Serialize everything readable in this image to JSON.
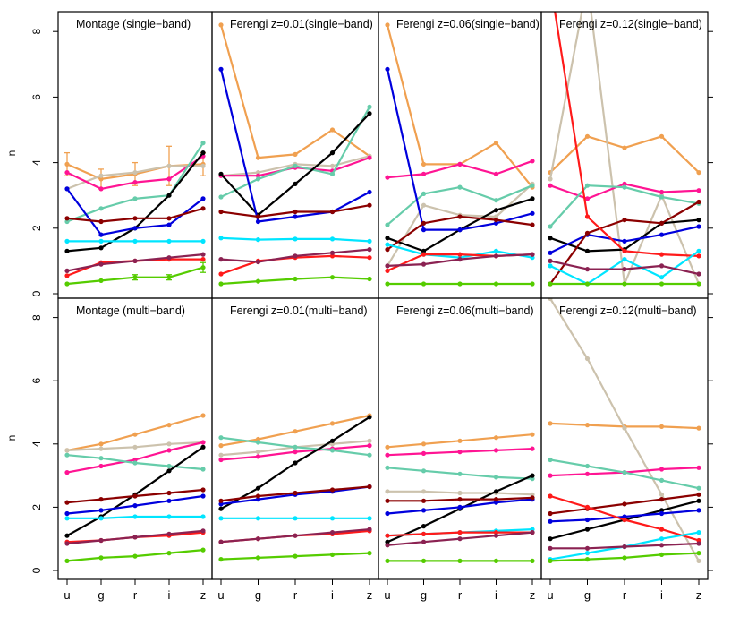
{
  "figure": {
    "ylabel": "n",
    "xticks": [
      "u",
      "g",
      "r",
      "i",
      "z"
    ],
    "yticks": [
      "0",
      "2",
      "4",
      "6",
      "8"
    ]
  },
  "chart_data": [
    {
      "type": "line",
      "title": "Montage (single−band)",
      "ylabel": "n",
      "categories": [
        "u",
        "g",
        "r",
        "i",
        "z"
      ],
      "ylim": [
        -0.2,
        8.7
      ],
      "series": [
        {
          "color": "#f0a050",
          "values": [
            3.95,
            3.5,
            3.65,
            3.9,
            3.95
          ],
          "err": [
            0.35,
            0.3,
            0.35,
            0.6,
            0.35
          ]
        },
        {
          "color": "#ccc2ad",
          "values": [
            3.2,
            3.6,
            3.7,
            3.9,
            3.9
          ]
        },
        {
          "color": "#ff1493",
          "values": [
            3.7,
            3.2,
            3.4,
            3.5,
            4.2
          ]
        },
        {
          "color": "#66ccaa",
          "values": [
            2.2,
            2.6,
            2.9,
            3.0,
            4.6
          ]
        },
        {
          "color": "#000000",
          "values": [
            1.3,
            1.4,
            2.0,
            3.0,
            4.3
          ]
        },
        {
          "color": "#0000dd",
          "values": [
            3.2,
            1.8,
            2.0,
            2.1,
            2.9
          ]
        },
        {
          "color": "#8b0000",
          "values": [
            2.3,
            2.2,
            2.3,
            2.3,
            2.6
          ]
        },
        {
          "color": "#00e5ff",
          "values": [
            1.6,
            1.6,
            1.6,
            1.6,
            1.6
          ]
        },
        {
          "color": "#ff1a1a",
          "values": [
            0.55,
            0.95,
            1.0,
            1.05,
            1.05
          ]
        },
        {
          "color": "#8b2252",
          "values": [
            0.7,
            0.9,
            1.0,
            1.1,
            1.2
          ]
        },
        {
          "color": "#55cc00",
          "values": [
            0.3,
            0.4,
            0.5,
            0.5,
            0.8
          ],
          "err": [
            0,
            0,
            0.08,
            0.08,
            0.15
          ]
        }
      ]
    },
    {
      "type": "line",
      "title": "Ferengi z=0.01(single−band)",
      "categories": [
        "u",
        "g",
        "r",
        "i",
        "z"
      ],
      "ylim": [
        -0.2,
        8.7
      ],
      "series": [
        {
          "color": "#f0a050",
          "values": [
            8.2,
            4.15,
            4.25,
            5.0,
            4.2
          ]
        },
        {
          "color": "#ccc2ad",
          "values": [
            3.6,
            3.7,
            3.95,
            3.9,
            4.2
          ]
        },
        {
          "color": "#ff1493",
          "values": [
            3.6,
            3.6,
            3.85,
            3.75,
            4.15
          ]
        },
        {
          "color": "#66ccaa",
          "values": [
            2.95,
            3.5,
            3.9,
            3.65,
            5.7
          ]
        },
        {
          "color": "#000000",
          "values": [
            3.65,
            2.4,
            3.35,
            4.3,
            5.5
          ]
        },
        {
          "color": "#0000dd",
          "values": [
            6.85,
            2.2,
            2.35,
            2.5,
            3.1
          ]
        },
        {
          "color": "#8b0000",
          "values": [
            2.5,
            2.35,
            2.5,
            2.5,
            2.7
          ]
        },
        {
          "color": "#00e5ff",
          "values": [
            1.7,
            1.65,
            1.67,
            1.67,
            1.6
          ]
        },
        {
          "color": "#ff1a1a",
          "values": [
            0.6,
            1.0,
            1.1,
            1.15,
            1.1
          ]
        },
        {
          "color": "#8b2252",
          "values": [
            1.05,
            0.97,
            1.15,
            1.25,
            1.35
          ]
        },
        {
          "color": "#55cc00",
          "values": [
            0.3,
            0.38,
            0.45,
            0.5,
            0.45
          ]
        }
      ]
    },
    {
      "type": "line",
      "title": "Ferengi z=0.06(single−band)",
      "categories": [
        "u",
        "g",
        "r",
        "i",
        "z"
      ],
      "ylim": [
        -0.2,
        8.7
      ],
      "series": [
        {
          "color": "#f0a050",
          "values": [
            8.2,
            3.95,
            3.95,
            4.6,
            3.25
          ]
        },
        {
          "color": "#ccc2ad",
          "values": [
            0.85,
            2.7,
            2.4,
            2.35,
            3.35
          ]
        },
        {
          "color": "#ff1493",
          "values": [
            3.55,
            3.65,
            3.95,
            3.65,
            4.05
          ]
        },
        {
          "color": "#66ccaa",
          "values": [
            2.1,
            3.05,
            3.25,
            2.85,
            3.3
          ]
        },
        {
          "color": "#000000",
          "values": [
            1.7,
            1.3,
            1.95,
            2.55,
            2.9
          ]
        },
        {
          "color": "#0000dd",
          "values": [
            6.85,
            1.95,
            1.95,
            2.15,
            2.45
          ]
        },
        {
          "color": "#8b0000",
          "values": [
            1.35,
            2.15,
            2.35,
            2.25,
            2.1
          ]
        },
        {
          "color": "#00e5ff",
          "values": [
            1.5,
            1.2,
            1.1,
            1.3,
            1.1
          ]
        },
        {
          "color": "#ff1a1a",
          "values": [
            0.7,
            1.2,
            1.2,
            1.15,
            1.2
          ]
        },
        {
          "color": "#8b2252",
          "values": [
            0.85,
            0.9,
            1.05,
            1.15,
            1.2
          ]
        },
        {
          "color": "#55cc00",
          "values": [
            0.3,
            0.3,
            0.3,
            0.3,
            0.3
          ]
        }
      ]
    },
    {
      "type": "line",
      "title": "Ferengi z=0.12(single−band)",
      "categories": [
        "u",
        "g",
        "r",
        "i",
        "z"
      ],
      "ylim": [
        -0.2,
        8.7
      ],
      "series": [
        {
          "color": "#f0a050",
          "values": [
            3.7,
            4.8,
            4.45,
            4.8,
            3.7
          ]
        },
        {
          "color": "#ccc2ad",
          "values": [
            3.5,
            9.5,
            0.3,
            3.0,
            0.3
          ]
        },
        {
          "color": "#ff1493",
          "values": [
            3.3,
            2.9,
            3.35,
            3.1,
            3.15
          ]
        },
        {
          "color": "#66ccaa",
          "values": [
            2.05,
            3.3,
            3.25,
            2.95,
            2.75
          ]
        },
        {
          "color": "#000000",
          "values": [
            1.7,
            1.3,
            1.35,
            2.15,
            2.25
          ]
        },
        {
          "color": "#0000dd",
          "values": [
            1.25,
            1.8,
            1.6,
            1.8,
            2.05
          ]
        },
        {
          "color": "#8b0000",
          "values": [
            0.3,
            1.85,
            2.25,
            2.15,
            2.8
          ]
        },
        {
          "color": "#ff1a1a",
          "values": [
            9.5,
            2.35,
            1.3,
            1.2,
            1.15
          ]
        },
        {
          "color": "#00e5ff",
          "values": [
            0.85,
            0.3,
            1.05,
            0.5,
            1.3
          ]
        },
        {
          "color": "#8b2252",
          "values": [
            1.0,
            0.75,
            0.75,
            0.85,
            0.6
          ]
        },
        {
          "color": "#55cc00",
          "values": [
            0.3,
            0.3,
            0.3,
            0.3,
            0.3
          ]
        }
      ]
    },
    {
      "type": "line",
      "title": "Montage (multi−band)",
      "ylabel": "n",
      "categories": [
        "u",
        "g",
        "r",
        "i",
        "z"
      ],
      "ylim": [
        -0.2,
        8.7
      ],
      "series": [
        {
          "color": "#f0a050",
          "values": [
            3.8,
            4.0,
            4.3,
            4.6,
            4.9
          ]
        },
        {
          "color": "#ccc2ad",
          "values": [
            3.8,
            3.85,
            3.9,
            4.0,
            4.05
          ]
        },
        {
          "color": "#ff1493",
          "values": [
            3.1,
            3.3,
            3.5,
            3.8,
            4.05
          ]
        },
        {
          "color": "#66ccaa",
          "values": [
            3.65,
            3.55,
            3.4,
            3.3,
            3.2
          ]
        },
        {
          "color": "#000000",
          "values": [
            1.1,
            1.7,
            2.4,
            3.15,
            3.9
          ]
        },
        {
          "color": "#0000dd",
          "values": [
            1.8,
            1.9,
            2.05,
            2.2,
            2.35
          ]
        },
        {
          "color": "#8b0000",
          "values": [
            2.15,
            2.25,
            2.35,
            2.45,
            2.55
          ]
        },
        {
          "color": "#00e5ff",
          "values": [
            1.65,
            1.65,
            1.7,
            1.7,
            1.7
          ]
        },
        {
          "color": "#ff1a1a",
          "values": [
            0.9,
            0.95,
            1.05,
            1.1,
            1.2
          ]
        },
        {
          "color": "#8b2252",
          "values": [
            0.85,
            0.95,
            1.05,
            1.15,
            1.25
          ]
        },
        {
          "color": "#55cc00",
          "values": [
            0.3,
            0.4,
            0.45,
            0.55,
            0.65
          ]
        }
      ]
    },
    {
      "type": "line",
      "title": "Ferengi z=0.01(multi−band)",
      "categories": [
        "u",
        "g",
        "r",
        "i",
        "z"
      ],
      "ylim": [
        -0.2,
        8.7
      ],
      "series": [
        {
          "color": "#f0a050",
          "values": [
            3.95,
            4.15,
            4.4,
            4.65,
            4.9
          ]
        },
        {
          "color": "#ccc2ad",
          "values": [
            3.65,
            3.75,
            3.9,
            4.0,
            4.1
          ]
        },
        {
          "color": "#ff1493",
          "values": [
            3.5,
            3.6,
            3.75,
            3.85,
            3.95
          ]
        },
        {
          "color": "#66ccaa",
          "values": [
            4.2,
            4.05,
            3.9,
            3.8,
            3.65
          ]
        },
        {
          "color": "#000000",
          "values": [
            1.95,
            2.6,
            3.4,
            4.1,
            4.85
          ]
        },
        {
          "color": "#0000dd",
          "values": [
            2.1,
            2.25,
            2.4,
            2.5,
            2.65
          ]
        },
        {
          "color": "#8b0000",
          "values": [
            2.2,
            2.35,
            2.45,
            2.55,
            2.65
          ]
        },
        {
          "color": "#00e5ff",
          "values": [
            1.65,
            1.65,
            1.65,
            1.65,
            1.65
          ]
        },
        {
          "color": "#ff1a1a",
          "values": [
            0.9,
            1.0,
            1.1,
            1.15,
            1.25
          ]
        },
        {
          "color": "#8b2252",
          "values": [
            0.9,
            1.0,
            1.1,
            1.2,
            1.3
          ]
        },
        {
          "color": "#55cc00",
          "values": [
            0.35,
            0.4,
            0.45,
            0.5,
            0.55
          ]
        }
      ]
    },
    {
      "type": "line",
      "title": "Ferengi z=0.06(multi−band)",
      "categories": [
        "u",
        "g",
        "r",
        "i",
        "z"
      ],
      "ylim": [
        -0.2,
        8.7
      ],
      "series": [
        {
          "color": "#f0a050",
          "values": [
            3.9,
            4.0,
            4.1,
            4.2,
            4.3
          ]
        },
        {
          "color": "#ccc2ad",
          "values": [
            2.5,
            2.5,
            2.45,
            2.45,
            2.4
          ]
        },
        {
          "color": "#ff1493",
          "values": [
            3.65,
            3.7,
            3.75,
            3.8,
            3.85
          ]
        },
        {
          "color": "#66ccaa",
          "values": [
            3.25,
            3.15,
            3.05,
            2.95,
            2.9
          ]
        },
        {
          "color": "#000000",
          "values": [
            0.9,
            1.4,
            1.95,
            2.5,
            3.0
          ]
        },
        {
          "color": "#0000dd",
          "values": [
            1.8,
            1.9,
            2.0,
            2.15,
            2.25
          ]
        },
        {
          "color": "#8b0000",
          "values": [
            2.2,
            2.2,
            2.25,
            2.25,
            2.3
          ]
        },
        {
          "color": "#00e5ff",
          "values": [
            1.1,
            1.15,
            1.2,
            1.25,
            1.3
          ]
        },
        {
          "color": "#ff1a1a",
          "values": [
            1.1,
            1.15,
            1.2,
            1.2,
            1.2
          ]
        },
        {
          "color": "#8b2252",
          "values": [
            0.8,
            0.9,
            1.0,
            1.1,
            1.2
          ]
        },
        {
          "color": "#55cc00",
          "values": [
            0.3,
            0.3,
            0.3,
            0.3,
            0.3
          ]
        }
      ]
    },
    {
      "type": "line",
      "title": "Ferengi z=0.12(multi−band)",
      "categories": [
        "u",
        "g",
        "r",
        "i",
        "z"
      ],
      "ylim": [
        -0.2,
        8.7
      ],
      "series": [
        {
          "color": "#f0a050",
          "values": [
            4.65,
            4.6,
            4.55,
            4.55,
            4.5
          ]
        },
        {
          "color": "#ccc2ad",
          "values": [
            8.6,
            6.7,
            4.5,
            2.4,
            0.3
          ]
        },
        {
          "color": "#ff1493",
          "values": [
            3.0,
            3.05,
            3.1,
            3.2,
            3.25
          ]
        },
        {
          "color": "#66ccaa",
          "values": [
            3.5,
            3.3,
            3.1,
            2.85,
            2.6
          ]
        },
        {
          "color": "#000000",
          "values": [
            1.0,
            1.3,
            1.6,
            1.9,
            2.2
          ]
        },
        {
          "color": "#0000dd",
          "values": [
            1.55,
            1.6,
            1.7,
            1.8,
            1.9
          ]
        },
        {
          "color": "#8b0000",
          "values": [
            1.8,
            1.95,
            2.1,
            2.25,
            2.4
          ]
        },
        {
          "color": "#ff1a1a",
          "values": [
            2.35,
            2.0,
            1.6,
            1.3,
            0.95
          ]
        },
        {
          "color": "#00e5ff",
          "values": [
            0.35,
            0.55,
            0.75,
            1.0,
            1.2
          ]
        },
        {
          "color": "#8b2252",
          "values": [
            0.7,
            0.7,
            0.75,
            0.8,
            0.85
          ]
        },
        {
          "color": "#55cc00",
          "values": [
            0.3,
            0.35,
            0.4,
            0.5,
            0.55
          ]
        }
      ]
    }
  ]
}
